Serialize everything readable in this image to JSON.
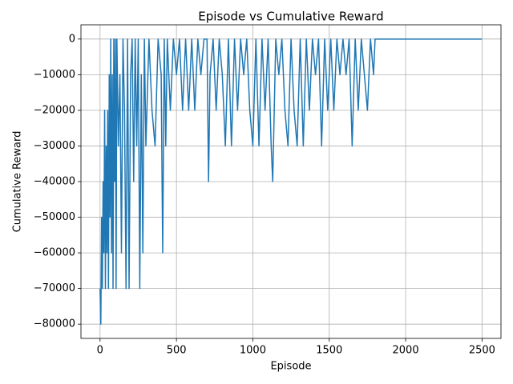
{
  "chart_data": {
    "type": "line",
    "title": "Episode vs Cumulative Reward",
    "xlabel": "Episode",
    "ylabel": "Cumulative Reward",
    "grid": true,
    "xlim": [
      -125,
      2624
    ],
    "ylim": [
      -84000,
      4000
    ],
    "xticks": [
      0,
      500,
      1000,
      1500,
      2000,
      2500
    ],
    "yticks": [
      -80000,
      -70000,
      -60000,
      -50000,
      -40000,
      -30000,
      -20000,
      -10000,
      0
    ],
    "x": [
      0,
      5,
      10,
      15,
      20,
      25,
      30,
      35,
      40,
      45,
      50,
      55,
      60,
      65,
      70,
      75,
      80,
      85,
      90,
      95,
      100,
      105,
      110,
      120,
      130,
      140,
      150,
      160,
      170,
      180,
      190,
      200,
      210,
      220,
      230,
      240,
      250,
      260,
      270,
      280,
      290,
      300,
      320,
      340,
      360,
      380,
      400,
      410,
      420,
      430,
      440,
      460,
      480,
      500,
      520,
      540,
      560,
      580,
      600,
      620,
      640,
      660,
      680,
      700,
      710,
      720,
      740,
      760,
      780,
      800,
      820,
      840,
      860,
      880,
      900,
      920,
      940,
      960,
      980,
      1000,
      1020,
      1040,
      1060,
      1080,
      1100,
      1120,
      1130,
      1150,
      1170,
      1190,
      1210,
      1230,
      1250,
      1270,
      1290,
      1310,
      1330,
      1350,
      1370,
      1390,
      1410,
      1430,
      1450,
      1470,
      1490,
      1510,
      1530,
      1550,
      1570,
      1590,
      1610,
      1630,
      1650,
      1670,
      1690,
      1710,
      1730,
      1750,
      1770,
      1790,
      1800,
      2499
    ],
    "series": [
      {
        "color": "#1f77b4",
        "values": [
          -70000,
          -80000,
          -50000,
          -70000,
          -40000,
          -60000,
          -20000,
          -70000,
          -30000,
          -60000,
          -20000,
          -70000,
          -10000,
          -50000,
          0,
          -60000,
          -10000,
          -70000,
          0,
          -40000,
          0,
          -70000,
          0,
          -30000,
          -10000,
          -60000,
          0,
          -20000,
          -70000,
          0,
          -70000,
          -10000,
          0,
          -40000,
          0,
          -30000,
          0,
          -70000,
          -10000,
          -60000,
          0,
          -30000,
          0,
          -20000,
          -30000,
          0,
          -10000,
          -60000,
          0,
          -30000,
          0,
          -20000,
          0,
          -10000,
          0,
          -20000,
          0,
          -20000,
          0,
          -20000,
          0,
          -10000,
          0,
          0,
          -40000,
          -10000,
          0,
          -20000,
          0,
          -10000,
          -30000,
          0,
          -30000,
          0,
          -20000,
          0,
          -10000,
          0,
          -20000,
          -30000,
          0,
          -30000,
          0,
          -20000,
          0,
          -30000,
          -40000,
          0,
          -10000,
          0,
          -20000,
          -30000,
          0,
          -20000,
          -30000,
          0,
          -30000,
          0,
          -20000,
          0,
          -10000,
          0,
          -30000,
          0,
          -20000,
          0,
          -20000,
          0,
          -10000,
          0,
          -10000,
          0,
          -30000,
          0,
          -20000,
          0,
          -10000,
          -20000,
          0,
          -10000,
          0,
          0
        ]
      }
    ]
  }
}
